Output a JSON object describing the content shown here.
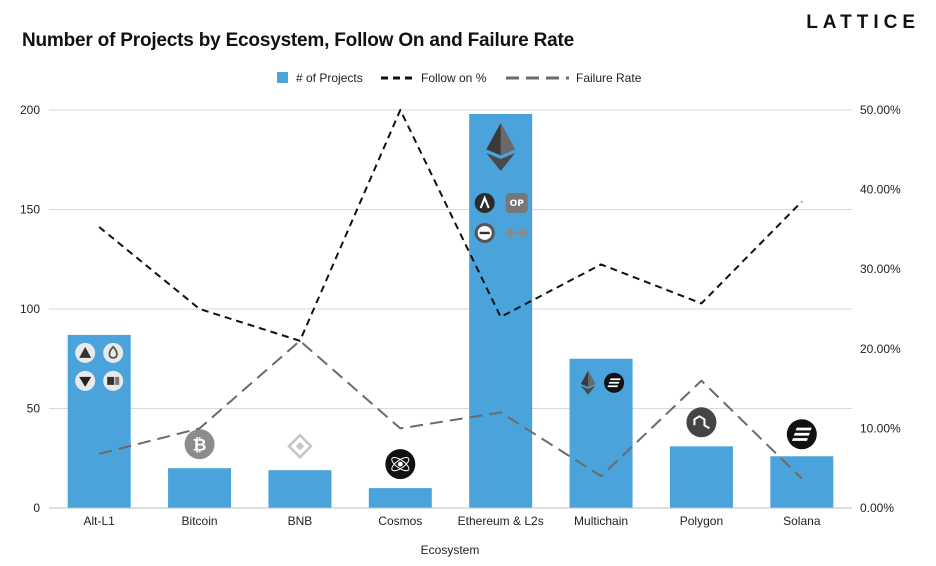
{
  "header": {
    "title": "Number of Projects by Ecosystem, Follow On and Failure Rate",
    "brand": "LATTICE"
  },
  "colors": {
    "bar": "#4aa3db",
    "follow_line": "#111111",
    "failure_line": "#6b6b6b",
    "grid": "#d9d9d9"
  },
  "chart_data": {
    "type": "bar",
    "title": "Number of Projects by Ecosystem, Follow On and Failure Rate",
    "xlabel": "Ecosystem",
    "ylabel": "",
    "categories": [
      "Alt-L1",
      "Bitcoin",
      "BNB",
      "Cosmos",
      "Ethereum & L2s",
      "Multichain",
      "Polygon",
      "Solana"
    ],
    "ylim": [
      0,
      200
    ],
    "y2lim": [
      0,
      0.5
    ],
    "left_ticks": [
      "0",
      "50",
      "100",
      "150",
      "200"
    ],
    "right_ticks": [
      "0.00%",
      "10.00%",
      "20.00%",
      "30.00%",
      "40.00%",
      "50.00%"
    ],
    "grid": true,
    "legend_position": "top",
    "series": [
      {
        "name": "# of Projects",
        "type": "bar",
        "axis": "left",
        "values": [
          87,
          20,
          19,
          10,
          198,
          75,
          31,
          26
        ]
      },
      {
        "name": "Follow on %",
        "type": "line",
        "axis": "right",
        "values": [
          0.353,
          0.25,
          0.21,
          0.5,
          0.24,
          0.306,
          0.257,
          0.385
        ]
      },
      {
        "name": "Failure Rate",
        "type": "line",
        "axis": "right",
        "values": [
          0.068,
          0.1,
          0.21,
          0.1,
          0.12,
          0.04,
          0.16,
          0.037
        ]
      }
    ],
    "ecosystem_icons": [
      [
        "avalanche-icon",
        "sui-icon",
        "tron-icon",
        "bitcoin-cash-icon"
      ],
      [
        "bitcoin-icon"
      ],
      [
        "bnb-icon"
      ],
      [
        "cosmos-icon"
      ],
      [
        "ethereum-icon",
        "arbitrum-icon",
        "optimism-icon",
        "zksync-icon",
        "bridge-icon"
      ],
      [
        "ethereum-icon",
        "solana-icon"
      ],
      [
        "polygon-icon"
      ],
      [
        "solana-icon"
      ]
    ]
  }
}
